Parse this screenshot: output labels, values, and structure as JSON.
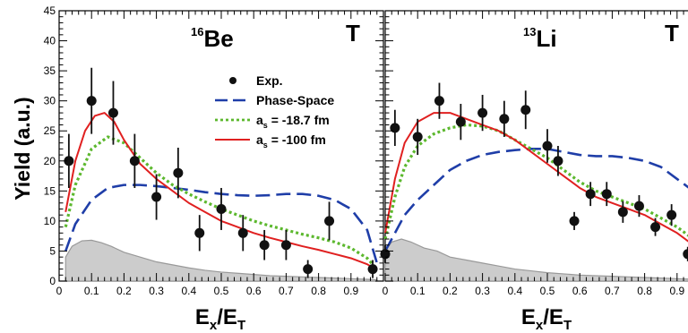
{
  "chart_data": [
    {
      "type": "line",
      "panel_label": "T",
      "nucleus_mass": "16",
      "nucleus_symbol": "Be",
      "xlabel_main": "E",
      "xlabel_sub1": "x",
      "xlabel_mid": "/E",
      "xlabel_sub2": "T",
      "ylabel": "Yield (a.u.)",
      "xlim": [
        0,
        1.0
      ],
      "ylim": [
        0,
        45
      ],
      "x_ticks": [
        0,
        0.1,
        0.2,
        0.3,
        0.4,
        0.5,
        0.6,
        0.7,
        0.8,
        0.9
      ],
      "x_tick_labels": [
        "0",
        "0.1",
        "0.2",
        "0.3",
        "0.4",
        "0.5",
        "0.6",
        "0.7",
        "0.8",
        "0.9"
      ],
      "y_ticks": [
        0,
        5,
        10,
        15,
        20,
        25,
        30,
        35,
        40,
        45
      ],
      "y_tick_labels": [
        "0",
        "5",
        "10",
        "15",
        "20",
        "25",
        "30",
        "35",
        "40",
        "45"
      ],
      "legend": {
        "placement": "top-right",
        "entries": [
          {
            "label": "Exp.",
            "sub": "",
            "rest": "",
            "kind": "marker",
            "color": "#111111"
          },
          {
            "label": "Phase-Space",
            "sub": "",
            "rest": "",
            "kind": "dashed",
            "color": "#1f3ea8"
          },
          {
            "label": "a",
            "sub": "s",
            "rest": " = -18.7 fm",
            "kind": "dotted",
            "color": "#5cb82e"
          },
          {
            "label": "a",
            "sub": "s",
            "rest": " = -100 fm",
            "kind": "solid",
            "color": "#e02020"
          }
        ]
      },
      "series": [
        {
          "kind": "exp",
          "color": "#111111",
          "x": [
            0.03,
            0.1,
            0.167,
            0.233,
            0.3,
            0.367,
            0.433,
            0.5,
            0.567,
            0.633,
            0.7,
            0.767,
            0.833,
            0.967
          ],
          "y": [
            20,
            30,
            28,
            20,
            14,
            18,
            8,
            12,
            8,
            6,
            6,
            2,
            10,
            2
          ],
          "err": [
            4.5,
            5.5,
            5.3,
            4.5,
            3.8,
            4.2,
            3,
            3.5,
            3,
            2.5,
            2.5,
            1.5,
            3.2,
            1.5
          ]
        },
        {
          "kind": "phase_space",
          "color": "#1f3ea8",
          "x": [
            0.02,
            0.05,
            0.1,
            0.15,
            0.2,
            0.25,
            0.3,
            0.35,
            0.4,
            0.45,
            0.5,
            0.55,
            0.6,
            0.65,
            0.7,
            0.75,
            0.8,
            0.85,
            0.9,
            0.95,
            0.98
          ],
          "y": [
            5,
            9.5,
            13.5,
            15.5,
            16,
            16,
            15.8,
            15.5,
            15.2,
            14.8,
            14.5,
            14.3,
            14.2,
            14.3,
            14.5,
            14.5,
            14.2,
            13.5,
            12,
            8.5,
            3
          ]
        },
        {
          "kind": "as_18_7",
          "color": "#5cb82e",
          "x": [
            0.02,
            0.05,
            0.1,
            0.15,
            0.2,
            0.25,
            0.3,
            0.35,
            0.4,
            0.45,
            0.5,
            0.55,
            0.6,
            0.65,
            0.7,
            0.75,
            0.8,
            0.85,
            0.9,
            0.95,
            0.98
          ],
          "y": [
            9,
            16,
            22,
            24,
            23,
            20.5,
            18,
            16,
            14.5,
            13.2,
            12,
            11,
            10,
            9.2,
            8.5,
            7.8,
            7.2,
            6.5,
            5.5,
            3.8,
            2
          ]
        },
        {
          "kind": "as_100",
          "color": "#e02020",
          "x": [
            0.02,
            0.05,
            0.08,
            0.11,
            0.14,
            0.17,
            0.2,
            0.25,
            0.3,
            0.35,
            0.4,
            0.45,
            0.5,
            0.55,
            0.6,
            0.65,
            0.7,
            0.75,
            0.8,
            0.85,
            0.9,
            0.95,
            0.98
          ],
          "y": [
            11.5,
            20,
            25,
            27.5,
            28,
            26.5,
            23.5,
            19.5,
            17,
            15,
            13,
            11.5,
            10,
            9,
            8,
            7.2,
            6.5,
            5.8,
            5.2,
            4.5,
            3.8,
            2.8,
            1.8
          ]
        },
        {
          "kind": "background",
          "color": "#cccccc",
          "x": [
            0.02,
            0.04,
            0.07,
            0.1,
            0.13,
            0.16,
            0.2,
            0.25,
            0.3,
            0.35,
            0.4,
            0.45,
            0.5,
            0.55,
            0.6,
            0.65,
            0.7,
            0.75,
            0.8,
            0.85,
            0.9,
            0.95,
            0.98
          ],
          "y": [
            4,
            5.8,
            6.7,
            6.8,
            6.4,
            5.8,
            4.8,
            4,
            3.2,
            2.7,
            2.2,
            1.8,
            1.5,
            1.3,
            1.1,
            0.9,
            0.8,
            0.7,
            0.6,
            0.5,
            0.4,
            0.3,
            0.2
          ]
        }
      ]
    },
    {
      "type": "line",
      "panel_label": "T",
      "nucleus_mass": "13",
      "nucleus_symbol": "Li",
      "xlabel_main": "E",
      "xlabel_sub1": "x",
      "xlabel_mid": "/E",
      "xlabel_sub2": "T",
      "ylabel": "",
      "xlim": [
        0,
        1.0
      ],
      "ylim": [
        0,
        45
      ],
      "x_ticks": [
        0,
        0.1,
        0.2,
        0.3,
        0.4,
        0.5,
        0.6,
        0.7,
        0.8,
        0.9
      ],
      "x_tick_labels": [
        "0",
        "0.1",
        "0.2",
        "0.3",
        "0.4",
        "0.5",
        "0.6",
        "0.7",
        "0.8",
        "0.9"
      ],
      "y_ticks": [
        0,
        5,
        10,
        15,
        20,
        25,
        30,
        35,
        40,
        45
      ],
      "y_tick_labels": [],
      "series": [
        {
          "kind": "exp",
          "color": "#111111",
          "x": [
            0.0,
            0.03,
            0.1,
            0.167,
            0.233,
            0.3,
            0.367,
            0.433,
            0.5,
            0.533,
            0.583,
            0.633,
            0.683,
            0.733,
            0.783,
            0.833,
            0.883,
            0.933,
            0.983
          ],
          "y": [
            4.5,
            25.5,
            24,
            30,
            26.5,
            28,
            27,
            28.5,
            22.5,
            20,
            10,
            14.5,
            14.5,
            11.5,
            12.5,
            9,
            11,
            4.5,
            4
          ],
          "err": [
            1.5,
            3,
            3,
            3,
            3,
            3,
            3,
            3.2,
            2.8,
            2.5,
            1.5,
            2,
            2,
            1.8,
            1.8,
            1.5,
            1.8,
            1.2,
            1.2
          ]
        },
        {
          "kind": "phase_space",
          "color": "#1f3ea8",
          "x": [
            0.0,
            0.03,
            0.06,
            0.1,
            0.15,
            0.2,
            0.25,
            0.3,
            0.35,
            0.4,
            0.45,
            0.5,
            0.55,
            0.6,
            0.65,
            0.7,
            0.75,
            0.8,
            0.85,
            0.9,
            0.95,
            0.99
          ],
          "y": [
            5,
            8,
            11,
            13.5,
            16,
            18.5,
            20,
            21,
            21.5,
            21.8,
            22,
            22,
            21.5,
            21,
            20.8,
            20.8,
            20.5,
            20,
            19,
            17,
            15,
            12
          ]
        },
        {
          "kind": "as_18_7",
          "color": "#5cb82e",
          "x": [
            0.0,
            0.03,
            0.06,
            0.1,
            0.15,
            0.2,
            0.25,
            0.3,
            0.35,
            0.4,
            0.45,
            0.5,
            0.55,
            0.6,
            0.65,
            0.7,
            0.75,
            0.8,
            0.85,
            0.9,
            0.95,
            0.99
          ],
          "y": [
            7,
            14,
            19,
            22.5,
            24.5,
            25.5,
            26,
            25.8,
            25,
            23.5,
            22,
            20.5,
            18.5,
            16.5,
            15,
            14,
            13,
            12,
            10.5,
            9,
            7,
            5
          ]
        },
        {
          "kind": "as_100",
          "color": "#e02020",
          "x": [
            0.0,
            0.03,
            0.06,
            0.1,
            0.15,
            0.2,
            0.25,
            0.3,
            0.35,
            0.4,
            0.45,
            0.5,
            0.55,
            0.6,
            0.65,
            0.7,
            0.75,
            0.8,
            0.85,
            0.9,
            0.95,
            0.99
          ],
          "y": [
            8,
            17,
            23,
            26.5,
            28,
            28,
            27,
            26,
            25,
            23.5,
            21.5,
            19.5,
            17.5,
            15.5,
            14,
            13,
            12,
            11,
            9.5,
            8,
            6,
            4
          ]
        },
        {
          "kind": "background",
          "color": "#cccccc",
          "x": [
            0.0,
            0.02,
            0.05,
            0.08,
            0.12,
            0.16,
            0.2,
            0.25,
            0.3,
            0.35,
            0.4,
            0.45,
            0.5,
            0.55,
            0.6,
            0.65,
            0.7,
            0.75,
            0.8,
            0.85,
            0.9,
            0.95,
            0.99
          ],
          "y": [
            5,
            6.5,
            7,
            6.5,
            5.5,
            5,
            4,
            3.5,
            3,
            2.5,
            2,
            1.7,
            1.4,
            1.2,
            1,
            0.9,
            0.8,
            0.7,
            0.6,
            0.5,
            0.4,
            0.3,
            0.2
          ]
        }
      ]
    }
  ]
}
